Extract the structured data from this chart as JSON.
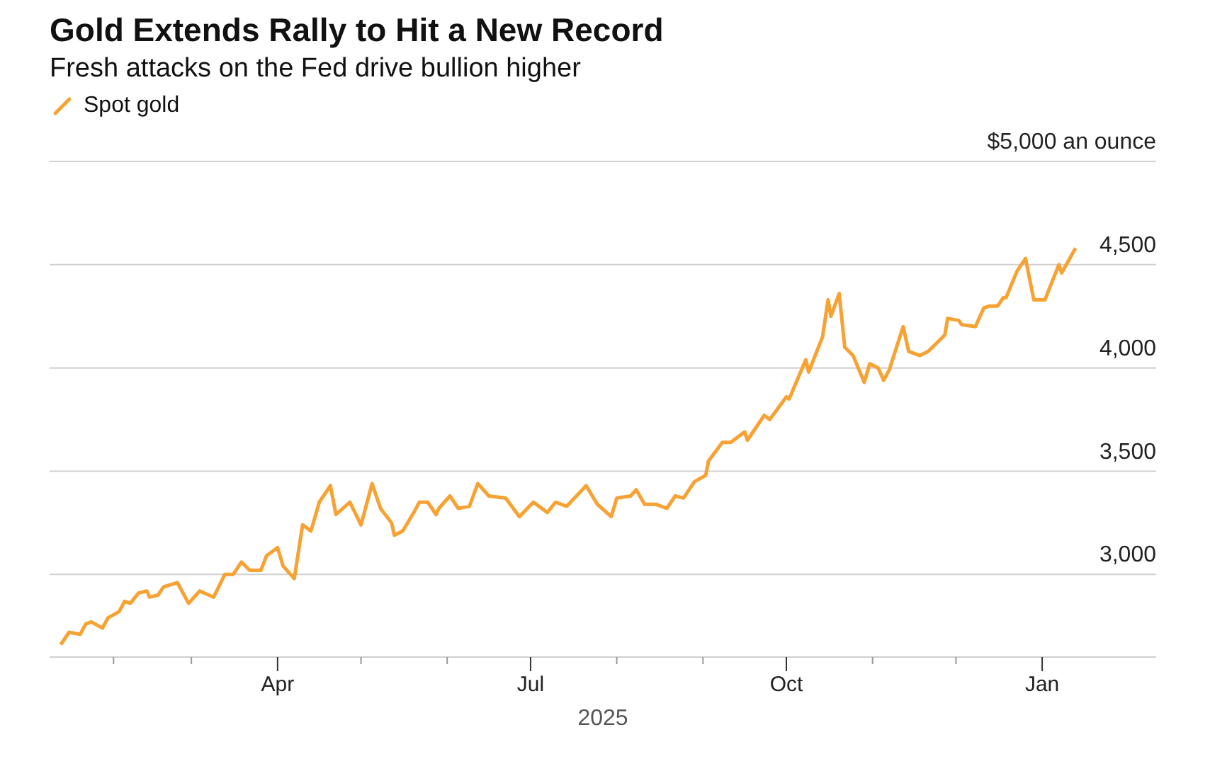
{
  "chart_data": {
    "type": "line",
    "title": "Gold Extends Rally to Hit a New Record",
    "subtitle": "Fresh attacks on the Fed drive bullion higher",
    "xlabel": "2025",
    "legend": "top left",
    "grid": "y",
    "marker": "none",
    "line_style": "solid",
    "x": [
      "2025-01-13",
      "2025-01-16",
      "2025-01-20",
      "2025-01-22",
      "2025-01-24",
      "2025-01-28",
      "2025-01-30",
      "2025-02-03",
      "2025-02-05",
      "2025-02-07",
      "2025-02-10",
      "2025-02-13",
      "2025-02-14",
      "2025-02-17",
      "2025-02-19",
      "2025-02-24",
      "2025-02-28",
      "2025-03-04",
      "2025-03-09",
      "2025-03-13",
      "2025-03-16",
      "2025-03-19",
      "2025-03-22",
      "2025-03-26",
      "2025-03-28",
      "2025-04-01",
      "2025-04-03",
      "2025-04-07",
      "2025-04-10",
      "2025-04-13",
      "2025-04-16",
      "2025-04-20",
      "2025-04-22",
      "2025-04-27",
      "2025-05-01",
      "2025-05-05",
      "2025-05-08",
      "2025-05-12",
      "2025-05-13",
      "2025-05-16",
      "2025-05-20",
      "2025-05-22",
      "2025-05-25",
      "2025-05-28",
      "2025-05-29",
      "2025-06-02",
      "2025-06-05",
      "2025-06-09",
      "2025-06-12",
      "2025-06-16",
      "2025-06-22",
      "2025-06-27",
      "2025-07-02",
      "2025-07-04",
      "2025-07-07",
      "2025-07-10",
      "2025-07-14",
      "2025-07-21",
      "2025-07-25",
      "2025-07-30",
      "2025-08-01",
      "2025-08-06",
      "2025-08-08",
      "2025-08-11",
      "2025-08-15",
      "2025-08-19",
      "2025-08-22",
      "2025-08-25",
      "2025-08-29",
      "2025-09-02",
      "2025-09-03",
      "2025-09-08",
      "2025-09-11",
      "2025-09-16",
      "2025-09-17",
      "2025-09-23",
      "2025-09-25",
      "2025-10-01",
      "2025-10-02",
      "2025-10-08",
      "2025-10-09",
      "2025-10-14",
      "2025-10-16",
      "2025-10-17",
      "2025-10-20",
      "2025-10-22",
      "2025-10-25",
      "2025-10-29",
      "2025-10-31",
      "2025-11-03",
      "2025-11-05",
      "2025-11-07",
      "2025-11-12",
      "2025-11-14",
      "2025-11-18",
      "2025-11-21",
      "2025-11-24",
      "2025-11-27",
      "2025-11-28",
      "2025-12-02",
      "2025-12-03",
      "2025-12-08",
      "2025-12-11",
      "2025-12-13",
      "2025-12-16",
      "2025-12-18",
      "2025-12-19",
      "2025-12-23",
      "2025-12-26",
      "2025-12-29",
      "2026-01-02",
      "2026-01-07",
      "2026-01-08",
      "2026-01-13"
    ],
    "series": [
      {
        "name": "Spot gold",
        "color": "#f7a233",
        "values": [
          2660,
          2720,
          2710,
          2760,
          2770,
          2740,
          2790,
          2820,
          2870,
          2860,
          2910,
          2920,
          2890,
          2900,
          2940,
          2960,
          2860,
          2920,
          2890,
          3000,
          3000,
          3060,
          3020,
          3020,
          3090,
          3130,
          3040,
          2980,
          3240,
          3210,
          3350,
          3430,
          3290,
          3350,
          3240,
          3440,
          3320,
          3250,
          3190,
          3210,
          3300,
          3350,
          3350,
          3290,
          3320,
          3380,
          3320,
          3330,
          3440,
          3380,
          3370,
          3280,
          3350,
          3330,
          3300,
          3350,
          3330,
          3430,
          3340,
          3280,
          3370,
          3380,
          3410,
          3340,
          3340,
          3320,
          3380,
          3370,
          3450,
          3480,
          3550,
          3640,
          3640,
          3690,
          3650,
          3770,
          3750,
          3860,
          3850,
          4040,
          3980,
          4150,
          4330,
          4250,
          4360,
          4100,
          4060,
          3930,
          4020,
          4000,
          3940,
          3990,
          4200,
          4080,
          4060,
          4080,
          4120,
          4160,
          4240,
          4230,
          4210,
          4200,
          4290,
          4300,
          4300,
          4340,
          4340,
          4470,
          4530,
          4330,
          4330,
          4500,
          4460,
          4580
        ]
      }
    ],
    "xlim": [
      "2025-01-09",
      "2026-02-11"
    ],
    "xticks": [
      {
        "value": "2025-02-01",
        "label": null
      },
      {
        "value": "2025-03-01",
        "label": null
      },
      {
        "value": "2025-04-01",
        "label": "Apr"
      },
      {
        "value": "2025-05-01",
        "label": null
      },
      {
        "value": "2025-06-01",
        "label": null
      },
      {
        "value": "2025-07-01",
        "label": "Jul"
      },
      {
        "value": "2025-08-01",
        "label": null
      },
      {
        "value": "2025-09-01",
        "label": null
      },
      {
        "value": "2025-10-01",
        "label": "Oct"
      },
      {
        "value": "2025-11-01",
        "label": null
      },
      {
        "value": "2025-12-01",
        "label": null
      },
      {
        "value": "2026-01-01",
        "label": "Jan"
      }
    ],
    "ylim": [
      2600,
      5000
    ],
    "yticks": [
      {
        "value": 3000,
        "label": "3,000"
      },
      {
        "value": 3500,
        "label": "3,500"
      },
      {
        "value": 4000,
        "label": "4,000"
      },
      {
        "value": 4500,
        "label": "4,500"
      },
      {
        "value": 5000,
        "label": "$5,000 an ounce"
      }
    ]
  }
}
